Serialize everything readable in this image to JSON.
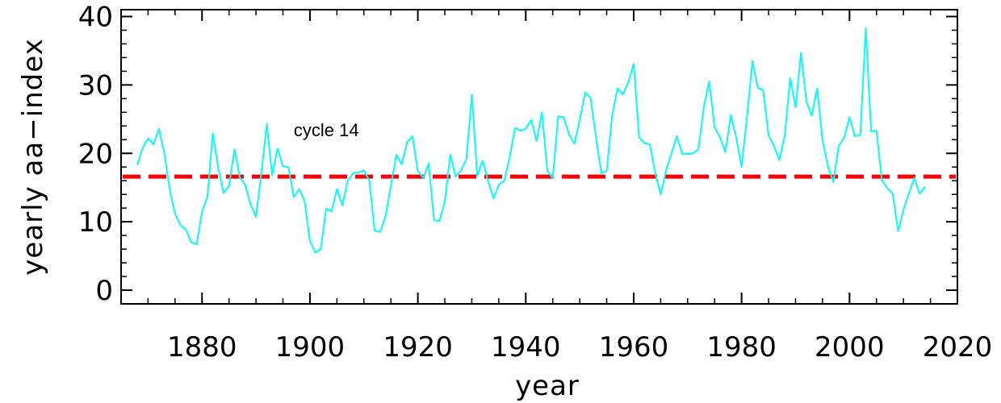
{
  "chart_data": {
    "type": "line",
    "title": "",
    "xlabel": "year",
    "ylabel": "yearly aa−index",
    "xlim": [
      1865,
      2020
    ],
    "ylim": [
      -2,
      41
    ],
    "x_ticks": [
      1880,
      1900,
      1920,
      1940,
      1960,
      1980,
      2000,
      2020
    ],
    "y_ticks": [
      0,
      10,
      20,
      30,
      40
    ],
    "grid": false,
    "legend": "none",
    "annotations": [
      {
        "text": "cycle 14",
        "x": 1897,
        "y": 22.5
      }
    ],
    "reference_line": {
      "y": 16.6,
      "style": "dashed",
      "color": "#ff0000"
    },
    "series": [
      {
        "color": "#00ffff",
        "x": [
          1868,
          1869,
          1870,
          1871,
          1872,
          1873,
          1874,
          1875,
          1876,
          1877,
          1878,
          1879,
          1880,
          1881,
          1882,
          1883,
          1884,
          1885,
          1886,
          1887,
          1888,
          1889,
          1890,
          1891,
          1892,
          1893,
          1894,
          1895,
          1896,
          1897,
          1898,
          1899,
          1900,
          1901,
          1902,
          1903,
          1904,
          1905,
          1906,
          1907,
          1908,
          1909,
          1910,
          1911,
          1912,
          1913,
          1914,
          1915,
          1916,
          1917,
          1918,
          1919,
          1920,
          1921,
          1922,
          1923,
          1924,
          1925,
          1926,
          1927,
          1928,
          1929,
          1930,
          1931,
          1932,
          1933,
          1934,
          1935,
          1936,
          1937,
          1938,
          1939,
          1940,
          1941,
          1942,
          1943,
          1944,
          1945,
          1946,
          1947,
          1948,
          1949,
          1950,
          1951,
          1952,
          1953,
          1954,
          1955,
          1956,
          1957,
          1958,
          1959,
          1960,
          1961,
          1962,
          1963,
          1964,
          1965,
          1966,
          1967,
          1968,
          1969,
          1970,
          1971,
          1972,
          1973,
          1974,
          1975,
          1976,
          1977,
          1978,
          1979,
          1980,
          1981,
          1982,
          1983,
          1984,
          1985,
          1986,
          1987,
          1988,
          1989,
          1990,
          1991,
          1992,
          1993,
          1994,
          1995,
          1996,
          1997,
          1998,
          1999,
          2000,
          2001,
          2002,
          2003,
          2004,
          2005,
          2006,
          2007,
          2008,
          2009,
          2010,
          2011,
          2012,
          2013,
          2014
        ],
        "y": [
          18.3,
          20.8,
          22.2,
          21.3,
          23.6,
          20.0,
          14.7,
          11.2,
          9.5,
          8.8,
          7.0,
          6.7,
          11.5,
          13.6,
          22.9,
          17.9,
          14.2,
          15.2,
          20.6,
          16.5,
          15.4,
          12.5,
          10.7,
          17.2,
          24.3,
          16.8,
          20.7,
          18.1,
          18.0,
          13.6,
          14.8,
          13.0,
          7.2,
          5.5,
          6.0,
          11.9,
          11.5,
          14.8,
          12.4,
          16.0,
          17.1,
          17.2,
          17.5,
          16.0,
          8.7,
          8.5,
          10.8,
          15.2,
          19.8,
          18.4,
          21.6,
          22.5,
          17.4,
          16.4,
          18.5,
          10.2,
          10.1,
          13.0,
          19.8,
          16.6,
          17.5,
          19.2,
          28.6,
          16.7,
          18.9,
          16.0,
          13.4,
          15.4,
          16.0,
          19.3,
          23.7,
          23.3,
          23.6,
          24.9,
          21.8,
          26.0,
          17.4,
          16.4,
          25.4,
          25.3,
          22.8,
          21.4,
          24.9,
          28.9,
          28.1,
          22.4,
          17.1,
          17.4,
          25.4,
          29.5,
          28.6,
          30.4,
          33.1,
          22.3,
          21.5,
          21.3,
          17.1,
          14.0,
          17.5,
          20.0,
          22.5,
          19.9,
          19.9,
          20.0,
          20.6,
          26.8,
          30.5,
          23.8,
          22.3,
          20.2,
          25.6,
          22.3,
          18.0,
          25.3,
          33.5,
          29.6,
          29.2,
          22.6,
          21.1,
          19.0,
          22.6,
          31.0,
          26.7,
          34.7,
          27.6,
          25.5,
          29.5,
          21.9,
          18.1,
          15.8,
          21.1,
          22.3,
          25.3,
          22.5,
          22.7,
          38.3,
          23.2,
          23.3,
          16.1,
          14.9,
          14.1,
          8.6,
          11.8,
          14.1,
          16.4,
          14.1,
          15.1
        ]
      }
    ]
  }
}
